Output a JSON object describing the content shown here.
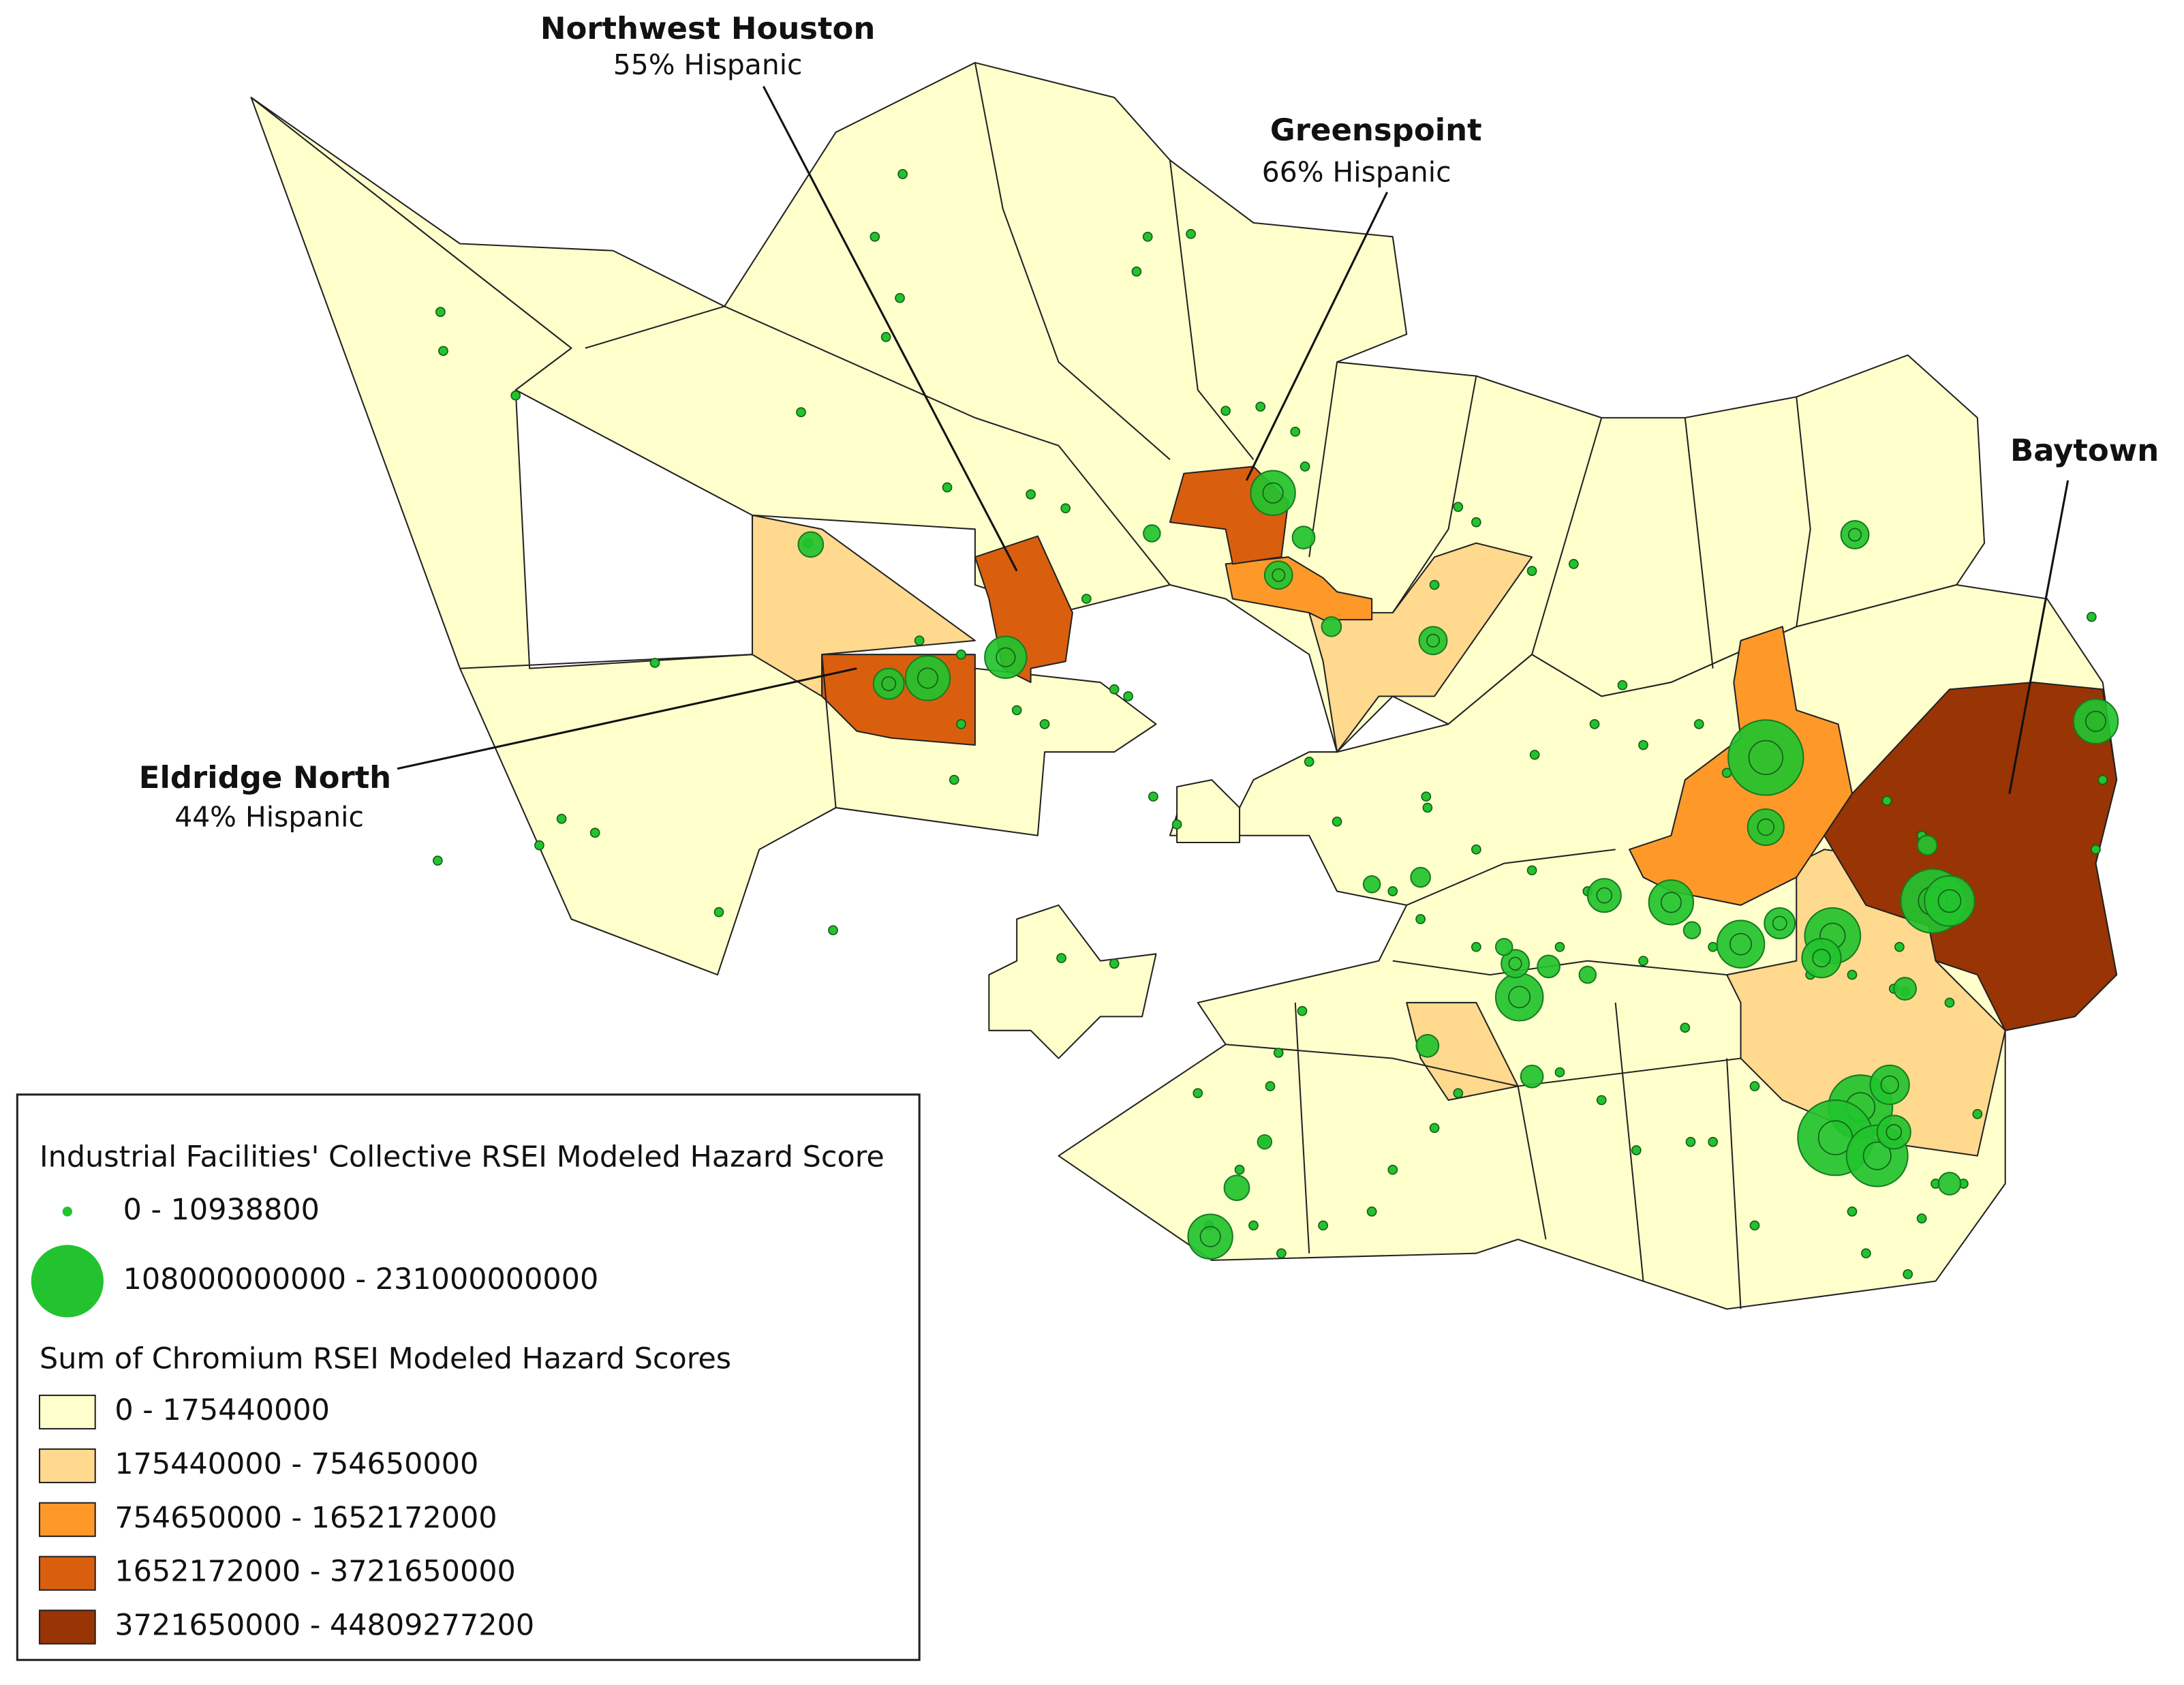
{
  "annotations": [
    {
      "name": "Northwest Houston",
      "subtitle": "55% Hispanic"
    },
    {
      "name": "Greenspoint",
      "subtitle": "66% Hispanic"
    },
    {
      "name": "Baytown"
    },
    {
      "name": "Eldridge North",
      "subtitle": "44% Hispanic"
    }
  ],
  "legend": {
    "facilities_title": "Industrial Facilities' Collective RSEI Modeled Hazard Score",
    "facility_color": "#22c32e",
    "facility_classes": [
      "0 - 10938800",
      "108000000000 - 231000000000"
    ],
    "chromium_title": "Sum of Chromium RSEI Modeled Hazard Scores",
    "chromium_classes": [
      {
        "label": "0 - 175440000",
        "color": "#ffffcc"
      },
      {
        "label": "175440000 - 754650000",
        "color": "#fed98e"
      },
      {
        "label": "754650000 - 1652172000",
        "color": "#fe9929"
      },
      {
        "label": "1652172000 - 3721650000",
        "color": "#d95f0e"
      },
      {
        "label": "3721650000 - 44809277200",
        "color": "#993404"
      }
    ]
  }
}
